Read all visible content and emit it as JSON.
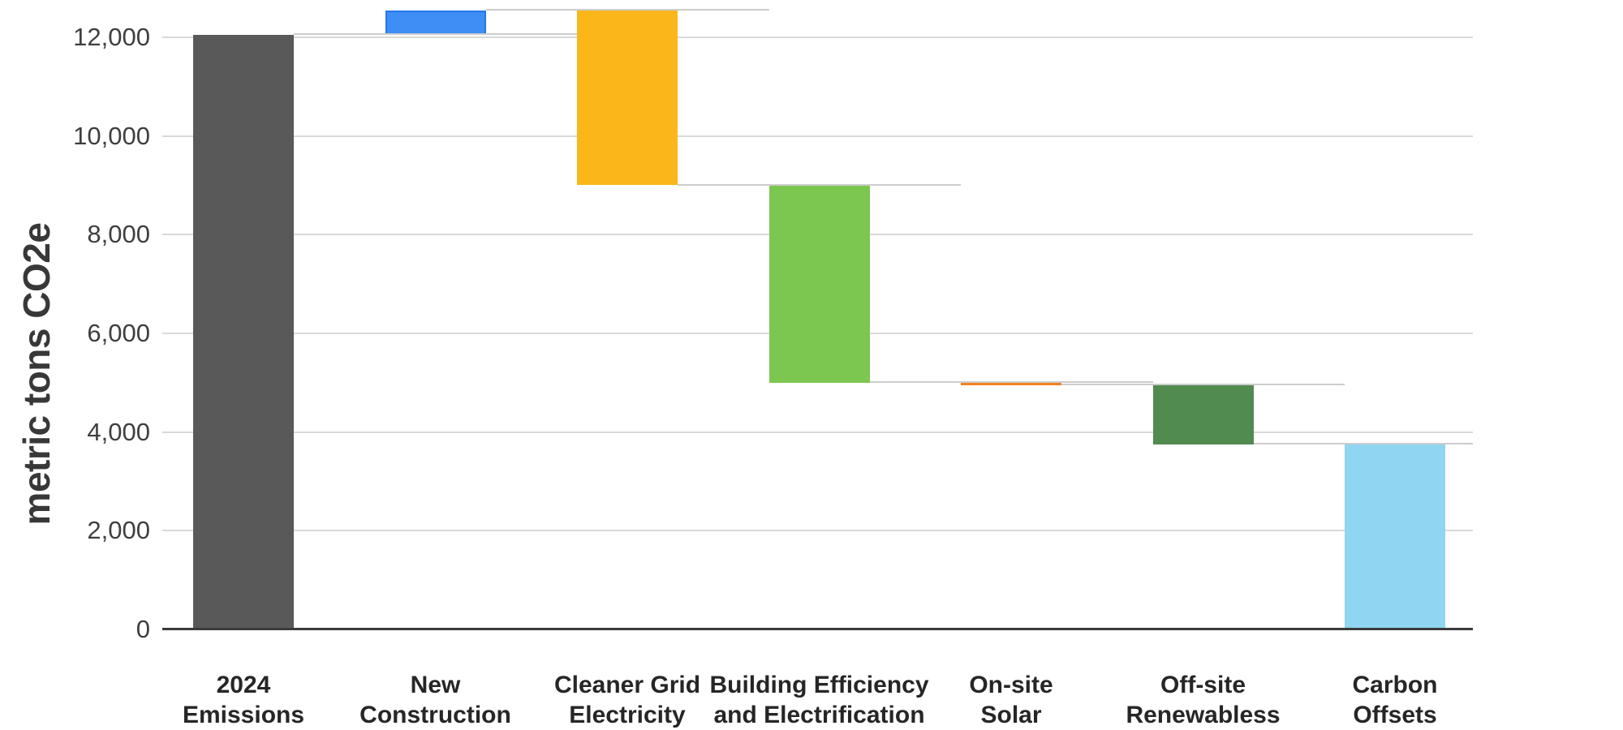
{
  "chart_data": {
    "type": "bar",
    "subtype": "waterfall",
    "ylabel": "metric tons CO2e",
    "xlabel": "",
    "grid": true,
    "legend": "none",
    "y_axis": {
      "min": 0,
      "max": 12700,
      "tick_interval": 2000,
      "tick_values": [
        0,
        2000,
        4000,
        6000,
        8000,
        10000,
        12000
      ],
      "tick_labels": [
        "0",
        "2,000",
        "4,000",
        "6,000",
        "8,000",
        "10,000",
        "12,000"
      ]
    },
    "categories": [
      "2024 Emissions",
      "New Construction",
      "Cleaner Grid Electricity",
      "Building Efficiency and Electrification",
      "On-site Solar",
      "Off-site Renewabless",
      "Carbon Offsets"
    ],
    "bars": [
      {
        "label": "2024 Emissions",
        "label_lines": [
          "2024",
          "Emissions"
        ],
        "start": 0,
        "end": 12050,
        "delta": 12050,
        "color": "#595959"
      },
      {
        "label": "New Construction",
        "label_lines": [
          "New",
          "Construction"
        ],
        "start": 12050,
        "end": 12550,
        "delta": 500,
        "color": "#3E8EF6",
        "border": "#2478E8"
      },
      {
        "label": "Cleaner Grid Electricity",
        "label_lines": [
          "Cleaner Grid",
          "Electricity"
        ],
        "start": 12550,
        "end": 9000,
        "delta": -3550,
        "color": "#FBB71A"
      },
      {
        "label": "Building Efficiency and Electrification",
        "label_lines": [
          "Building Efficiency",
          "and Electrification"
        ],
        "start": 9000,
        "end": 5000,
        "delta": -4000,
        "color": "#7CC750"
      },
      {
        "label": "On-site Solar",
        "label_lines": [
          "On-site",
          "Solar"
        ],
        "start": 5000,
        "end": 4950,
        "delta": -50,
        "color": "#F58220"
      },
      {
        "label": "Off-site Renewabless",
        "label_lines": [
          "Off-site",
          "Renewabless"
        ],
        "start": 4950,
        "end": 3750,
        "delta": -1200,
        "color": "#518B4F"
      },
      {
        "label": "Carbon Offsets",
        "label_lines": [
          "Carbon",
          "Offsets"
        ],
        "start": 3750,
        "end": 0,
        "delta": -3750,
        "color": "#90D5F1"
      }
    ],
    "colors": {
      "gridline": "#D9D9D9",
      "connector": "#CDCDCD",
      "axis_line": "#3B3B3B",
      "tick_text": "#3F3F3F",
      "category_text": "#262626",
      "y_title_text": "#383838"
    }
  }
}
